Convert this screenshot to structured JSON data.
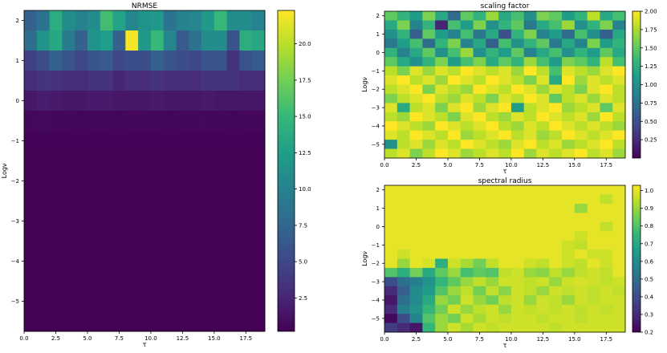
{
  "colormap": {
    "name": "viridis",
    "stops": [
      "#440154",
      "#482878",
      "#3e4989",
      "#31688e",
      "#26828e",
      "#1f9e89",
      "#35b779",
      "#6ece58",
      "#b5de2b",
      "#fde725"
    ]
  },
  "chart_data": [
    {
      "type": "heatmap",
      "title": "NRMSE",
      "xlabel": "τ",
      "ylabel": "Logν",
      "xlim": [
        0,
        19
      ],
      "ylim": [
        -5.75,
        2.25
      ],
      "n_cols": 19,
      "n_rows": 16,
      "xticks": [
        0,
        2.5,
        5,
        7.5,
        10,
        12.5,
        15,
        17.5
      ],
      "xtick_labels": [
        "0.0",
        "2.5",
        "5.0",
        "7.5",
        "10.0",
        "12.5",
        "15.0",
        "17.5"
      ],
      "yticks": [
        2,
        1,
        0,
        -1,
        -2,
        -3,
        -4,
        -5
      ],
      "ytick_labels": [
        "2",
        "1",
        "0",
        "−1",
        "−2",
        "−3",
        "−4",
        "−5"
      ],
      "color_range": [
        0.2,
        22.3
      ],
      "colorbar_ticks": [
        2.5,
        5,
        7.5,
        10,
        12.5,
        15,
        17.5,
        20
      ],
      "colorbar_tick_labels": [
        "2.5",
        "5.0",
        "7.5",
        "10.0",
        "12.5",
        "15.0",
        "17.5",
        "20.0"
      ],
      "values": [
        [
          7.0,
          8.5,
          14.0,
          11.0,
          10.0,
          11.0,
          15.5,
          13.0,
          10.5,
          11.5,
          12.0,
          8.5,
          10.0,
          10.5,
          12.0,
          15.0,
          11.0,
          11.0,
          10.0
        ],
        [
          8.0,
          11.5,
          13.5,
          9.5,
          7.0,
          11.5,
          12.5,
          7.0,
          22.0,
          12.0,
          15.0,
          10.5,
          6.5,
          8.5,
          11.0,
          11.0,
          6.0,
          14.0,
          13.5
        ],
        [
          4.5,
          5.5,
          7.0,
          6.0,
          5.0,
          6.0,
          6.5,
          5.0,
          5.5,
          5.5,
          7.0,
          6.0,
          5.5,
          5.0,
          6.0,
          6.0,
          3.5,
          6.0,
          6.5
        ],
        [
          3.0,
          3.5,
          3.5,
          3.0,
          3.0,
          3.5,
          3.5,
          2.5,
          3.0,
          3.0,
          3.5,
          3.0,
          3.0,
          3.0,
          3.5,
          3.5,
          3.5,
          3.0,
          3.0
        ],
        [
          1.5,
          2.0,
          1.8,
          1.5,
          1.5,
          1.8,
          1.8,
          1.5,
          1.5,
          1.5,
          1.8,
          1.5,
          1.5,
          1.5,
          1.8,
          1.5,
          1.5,
          1.5,
          1.5
        ],
        [
          0.6,
          0.7,
          0.6,
          0.6,
          0.5,
          0.6,
          0.6,
          0.5,
          0.6,
          0.6,
          0.6,
          0.5,
          0.6,
          0.6,
          0.6,
          0.6,
          0.5,
          0.6,
          0.6
        ],
        [
          0.4,
          0.4,
          0.4,
          0.4,
          0.4,
          0.4,
          0.4,
          0.4,
          0.4,
          0.4,
          0.4,
          0.4,
          0.4,
          0.4,
          0.4,
          0.4,
          0.4,
          0.4,
          0.4
        ],
        [
          0.3,
          0.3,
          0.3,
          0.3,
          0.3,
          0.3,
          0.3,
          0.3,
          0.3,
          0.3,
          0.3,
          0.3,
          0.3,
          0.3,
          0.3,
          0.3,
          0.3,
          0.3,
          0.3
        ],
        [
          0.3,
          0.3,
          0.3,
          0.3,
          0.3,
          0.3,
          0.3,
          0.3,
          0.3,
          0.3,
          0.3,
          0.3,
          0.3,
          0.3,
          0.3,
          0.3,
          0.3,
          0.3,
          0.3
        ],
        [
          0.3,
          0.3,
          0.3,
          0.3,
          0.3,
          0.3,
          0.3,
          0.3,
          0.3,
          0.3,
          0.3,
          0.3,
          0.3,
          0.3,
          0.3,
          0.3,
          0.3,
          0.3,
          0.3
        ],
        [
          0.3,
          0.3,
          0.3,
          0.3,
          0.3,
          0.3,
          0.3,
          0.3,
          0.3,
          0.3,
          0.3,
          0.3,
          0.3,
          0.3,
          0.3,
          0.3,
          0.3,
          0.3,
          0.3
        ],
        [
          0.3,
          0.3,
          0.3,
          0.3,
          0.3,
          0.3,
          0.3,
          0.3,
          0.3,
          0.3,
          0.3,
          0.3,
          0.3,
          0.3,
          0.3,
          0.3,
          0.3,
          0.3,
          0.3
        ],
        [
          0.3,
          0.3,
          0.3,
          0.3,
          0.3,
          0.3,
          0.3,
          0.3,
          0.3,
          0.3,
          0.3,
          0.3,
          0.3,
          0.3,
          0.3,
          0.3,
          0.3,
          0.3,
          0.3
        ],
        [
          0.3,
          0.3,
          0.3,
          0.3,
          0.3,
          0.3,
          0.3,
          0.3,
          0.3,
          0.3,
          0.3,
          0.3,
          0.3,
          0.3,
          0.3,
          0.3,
          0.3,
          0.3,
          0.3
        ],
        [
          0.3,
          0.3,
          0.3,
          0.3,
          0.3,
          0.3,
          0.3,
          0.3,
          0.3,
          0.3,
          0.3,
          0.3,
          0.3,
          0.3,
          0.3,
          0.3,
          0.3,
          0.3,
          0.3
        ],
        [
          0.3,
          0.3,
          0.3,
          0.3,
          0.3,
          0.3,
          0.3,
          0.3,
          0.3,
          0.3,
          0.3,
          0.3,
          0.3,
          0.3,
          0.3,
          0.3,
          0.3,
          0.3,
          0.3
        ]
      ]
    },
    {
      "type": "heatmap",
      "title": "scaling factor",
      "xlabel": "τ",
      "ylabel": "Logν",
      "xlim": [
        0,
        19
      ],
      "ylim": [
        -5.75,
        2.25
      ],
      "n_cols": 19,
      "n_rows": 16,
      "xticks": [
        0,
        2.5,
        5,
        7.5,
        10,
        12.5,
        15,
        17.5
      ],
      "xtick_labels": [
        "0.0",
        "2.5",
        "5.0",
        "7.5",
        "10.0",
        "12.5",
        "15.0",
        "17.5"
      ],
      "yticks": [
        2,
        1,
        0,
        -1,
        -2,
        -3,
        -4,
        -5
      ],
      "ytick_labels": [
        "2",
        "1",
        "0",
        "−1",
        "−2",
        "−3",
        "−4",
        "−5"
      ],
      "color_range": [
        0.0,
        2.0
      ],
      "colorbar_ticks": [
        0.25,
        0.5,
        0.75,
        1.0,
        1.25,
        1.5,
        1.75,
        2.0
      ],
      "colorbar_tick_labels": [
        "0.25",
        "0.50",
        "0.75",
        "1.00",
        "1.25",
        "1.50",
        "1.75",
        "2.00"
      ],
      "values": [
        [
          1.5,
          1.3,
          1.1,
          1.6,
          1.2,
          0.7,
          1.5,
          1.3,
          1.7,
          1.2,
          1.4,
          1.0,
          1.6,
          1.5,
          1.1,
          1.3,
          1.8,
          1.2,
          1.4
        ],
        [
          1.2,
          1.6,
          0.9,
          1.3,
          0.2,
          1.4,
          1.1,
          1.6,
          1.0,
          1.3,
          1.5,
          0.8,
          1.2,
          1.4,
          1.7,
          1.0,
          1.3,
          1.6,
          0.9
        ],
        [
          1.0,
          1.3,
          0.6,
          1.5,
          1.1,
          0.9,
          1.4,
          0.8,
          1.2,
          0.5,
          1.3,
          1.6,
          0.9,
          1.1,
          0.7,
          1.4,
          1.0,
          0.6,
          1.2
        ],
        [
          0.8,
          1.1,
          1.4,
          0.7,
          1.3,
          1.6,
          0.9,
          1.2,
          0.6,
          1.4,
          1.0,
          1.3,
          1.5,
          0.8,
          1.2,
          0.9,
          1.6,
          1.1,
          1.3
        ],
        [
          1.3,
          0.9,
          1.2,
          1.5,
          1.0,
          1.4,
          1.7,
          1.0,
          1.3,
          1.1,
          1.5,
          0.9,
          1.2,
          1.4,
          1.0,
          1.3,
          1.1,
          1.5,
          1.2
        ],
        [
          1.5,
          1.2,
          1.0,
          1.3,
          1.6,
          1.1,
          1.4,
          1.6,
          1.2,
          1.5,
          1.3,
          1.7,
          1.4,
          1.1,
          1.6,
          1.5,
          1.3,
          1.8,
          1.4
        ],
        [
          1.8,
          1.6,
          1.9,
          1.7,
          1.9,
          1.8,
          2.0,
          1.9,
          1.8,
          1.9,
          1.7,
          2.0,
          1.8,
          1.4,
          1.9,
          1.8,
          1.7,
          1.9,
          2.0
        ],
        [
          1.9,
          2.0,
          1.8,
          1.9,
          1.7,
          2.0,
          1.9,
          1.8,
          2.0,
          1.9,
          1.8,
          1.6,
          1.9,
          1.2,
          2.0,
          1.7,
          1.9,
          1.8,
          1.9
        ],
        [
          1.8,
          1.9,
          2.0,
          1.6,
          1.9,
          1.8,
          1.7,
          2.0,
          1.9,
          1.8,
          2.0,
          1.9,
          1.7,
          1.9,
          1.8,
          1.6,
          1.9,
          2.0,
          1.8
        ],
        [
          1.6,
          1.8,
          1.9,
          2.0,
          1.8,
          1.7,
          1.9,
          1.8,
          1.6,
          1.9,
          1.8,
          2.0,
          1.9,
          1.5,
          1.8,
          1.9,
          1.7,
          1.9,
          1.8
        ],
        [
          1.9,
          1.2,
          1.8,
          1.9,
          1.6,
          1.9,
          2.0,
          1.7,
          1.9,
          2.0,
          1.1,
          1.8,
          1.9,
          2.0,
          1.7,
          1.8,
          1.9,
          1.5,
          1.9
        ],
        [
          1.8,
          1.7,
          2.0,
          1.9,
          1.8,
          1.6,
          1.9,
          2.0,
          1.8,
          1.7,
          1.9,
          1.8,
          2.0,
          1.9,
          1.8,
          1.9,
          1.7,
          2.0,
          1.8
        ],
        [
          2.0,
          1.9,
          1.8,
          1.7,
          2.0,
          1.9,
          1.8,
          1.9,
          2.0,
          1.8,
          1.7,
          1.9,
          1.8,
          2.0,
          1.9,
          1.8,
          1.9,
          1.8,
          1.7
        ],
        [
          1.9,
          1.8,
          2.0,
          1.9,
          1.8,
          2.0,
          1.7,
          1.8,
          1.9,
          2.0,
          1.8,
          1.9,
          1.7,
          1.8,
          2.0,
          1.9,
          1.8,
          1.9,
          2.0
        ],
        [
          1.0,
          1.8,
          1.9,
          1.7,
          1.9,
          1.8,
          2.0,
          1.9,
          1.8,
          1.7,
          1.9,
          2.0,
          1.8,
          1.9,
          1.7,
          1.8,
          1.9,
          2.0,
          1.8
        ],
        [
          1.8,
          1.9,
          1.6,
          1.8,
          2.0,
          1.9,
          1.7,
          1.8,
          1.9,
          1.8,
          2.0,
          1.7,
          1.9,
          1.8,
          1.9,
          2.0,
          1.8,
          1.9,
          1.7
        ]
      ]
    },
    {
      "type": "heatmap",
      "title": "spectral radius",
      "xlabel": "τ",
      "ylabel": "Logν",
      "xlim": [
        0,
        19
      ],
      "ylim": [
        -5.75,
        2.25
      ],
      "n_cols": 19,
      "n_rows": 16,
      "xticks": [
        0,
        2.5,
        5,
        7.5,
        10,
        12.5,
        15,
        17.5
      ],
      "xtick_labels": [
        "0.0",
        "2.5",
        "5.0",
        "7.5",
        "10.0",
        "12.5",
        "15.0",
        "17.5"
      ],
      "yticks": [
        2,
        1,
        0,
        -1,
        -2,
        -3,
        -4,
        -5
      ],
      "ytick_labels": [
        "2",
        "1",
        "0",
        "−1",
        "−2",
        "−3",
        "−4",
        "−5"
      ],
      "color_range": [
        0.2,
        1.03
      ],
      "colorbar_ticks": [
        0.2,
        0.3,
        0.4,
        0.5,
        0.6,
        0.7,
        0.8,
        0.9,
        1.0
      ],
      "colorbar_tick_labels": [
        "0.2",
        "0.3",
        "0.4",
        "0.5",
        "0.6",
        "0.7",
        "0.8",
        "0.9",
        "1.0"
      ],
      "values": [
        [
          1.0,
          1.0,
          1.0,
          1.0,
          1.0,
          1.0,
          1.0,
          1.0,
          1.0,
          1.0,
          1.0,
          1.0,
          1.0,
          1.0,
          1.0,
          1.0,
          1.0,
          1.0,
          1.0
        ],
        [
          1.0,
          1.0,
          1.0,
          1.0,
          1.0,
          1.0,
          1.0,
          1.0,
          1.0,
          1.0,
          1.0,
          1.0,
          1.0,
          1.0,
          1.0,
          1.0,
          1.0,
          0.95,
          1.0
        ],
        [
          1.0,
          1.0,
          1.0,
          1.0,
          1.0,
          1.0,
          1.0,
          1.0,
          1.0,
          1.0,
          1.0,
          1.0,
          1.0,
          1.0,
          1.0,
          0.9,
          1.0,
          1.0,
          1.0
        ],
        [
          1.0,
          1.0,
          1.0,
          1.0,
          1.0,
          1.0,
          1.0,
          1.0,
          1.0,
          1.0,
          1.0,
          1.0,
          1.0,
          1.0,
          1.0,
          1.0,
          1.0,
          1.0,
          1.0
        ],
        [
          1.0,
          1.0,
          1.0,
          1.0,
          1.0,
          1.0,
          1.0,
          1.0,
          1.0,
          1.0,
          1.0,
          1.0,
          1.0,
          1.0,
          1.0,
          1.0,
          1.0,
          0.95,
          1.0
        ],
        [
          1.0,
          1.0,
          1.0,
          1.0,
          1.0,
          1.0,
          1.0,
          1.0,
          1.0,
          1.0,
          1.0,
          1.0,
          1.0,
          1.0,
          1.0,
          0.97,
          1.0,
          1.0,
          1.0
        ],
        [
          1.0,
          1.0,
          1.0,
          1.0,
          1.0,
          1.0,
          1.0,
          1.0,
          1.0,
          1.0,
          1.0,
          1.0,
          1.0,
          1.0,
          0.97,
          0.95,
          1.0,
          1.0,
          1.0
        ],
        [
          1.0,
          0.97,
          1.0,
          1.0,
          1.0,
          1.0,
          1.0,
          1.0,
          1.0,
          1.0,
          1.0,
          1.0,
          1.0,
          1.0,
          0.97,
          1.0,
          0.97,
          0.97,
          1.0
        ],
        [
          1.0,
          0.9,
          1.0,
          0.98,
          0.72,
          0.97,
          0.92,
          0.85,
          0.95,
          1.0,
          1.0,
          0.97,
          0.95,
          1.0,
          0.97,
          0.95,
          1.0,
          0.97,
          1.0
        ],
        [
          0.8,
          0.72,
          0.85,
          0.7,
          0.82,
          0.9,
          0.78,
          0.82,
          0.8,
          0.95,
          0.97,
          0.9,
          0.88,
          0.95,
          0.9,
          0.95,
          0.97,
          0.95,
          1.0
        ],
        [
          0.4,
          0.5,
          0.55,
          0.62,
          0.75,
          0.82,
          0.9,
          0.95,
          0.9,
          0.97,
          0.97,
          0.95,
          0.97,
          0.9,
          0.97,
          0.98,
          0.97,
          0.95,
          0.97
        ],
        [
          0.3,
          0.45,
          0.6,
          0.65,
          0.8,
          0.9,
          0.95,
          0.85,
          0.95,
          0.88,
          0.97,
          0.95,
          0.9,
          0.97,
          0.95,
          0.97,
          0.95,
          0.97,
          0.95
        ],
        [
          0.25,
          0.5,
          0.6,
          0.7,
          0.9,
          0.85,
          0.97,
          0.9,
          0.85,
          0.95,
          0.97,
          0.9,
          0.97,
          0.95,
          0.9,
          0.97,
          0.95,
          0.97,
          0.97
        ],
        [
          0.3,
          0.55,
          0.62,
          0.75,
          0.85,
          0.97,
          0.9,
          0.95,
          0.97,
          0.9,
          0.97,
          0.95,
          0.97,
          0.95,
          0.97,
          0.95,
          0.97,
          0.95,
          0.97
        ],
        [
          0.22,
          0.4,
          0.58,
          0.8,
          0.9,
          0.85,
          0.97,
          0.92,
          0.97,
          0.95,
          0.97,
          0.97,
          0.95,
          0.97,
          0.97,
          0.95,
          0.97,
          0.97,
          0.97
        ],
        [
          0.35,
          0.3,
          0.25,
          0.75,
          0.9,
          0.97,
          0.92,
          0.97,
          0.95,
          0.97,
          0.97,
          0.97,
          0.97,
          0.95,
          0.97,
          0.97,
          0.97,
          0.97,
          0.97
        ]
      ]
    }
  ]
}
